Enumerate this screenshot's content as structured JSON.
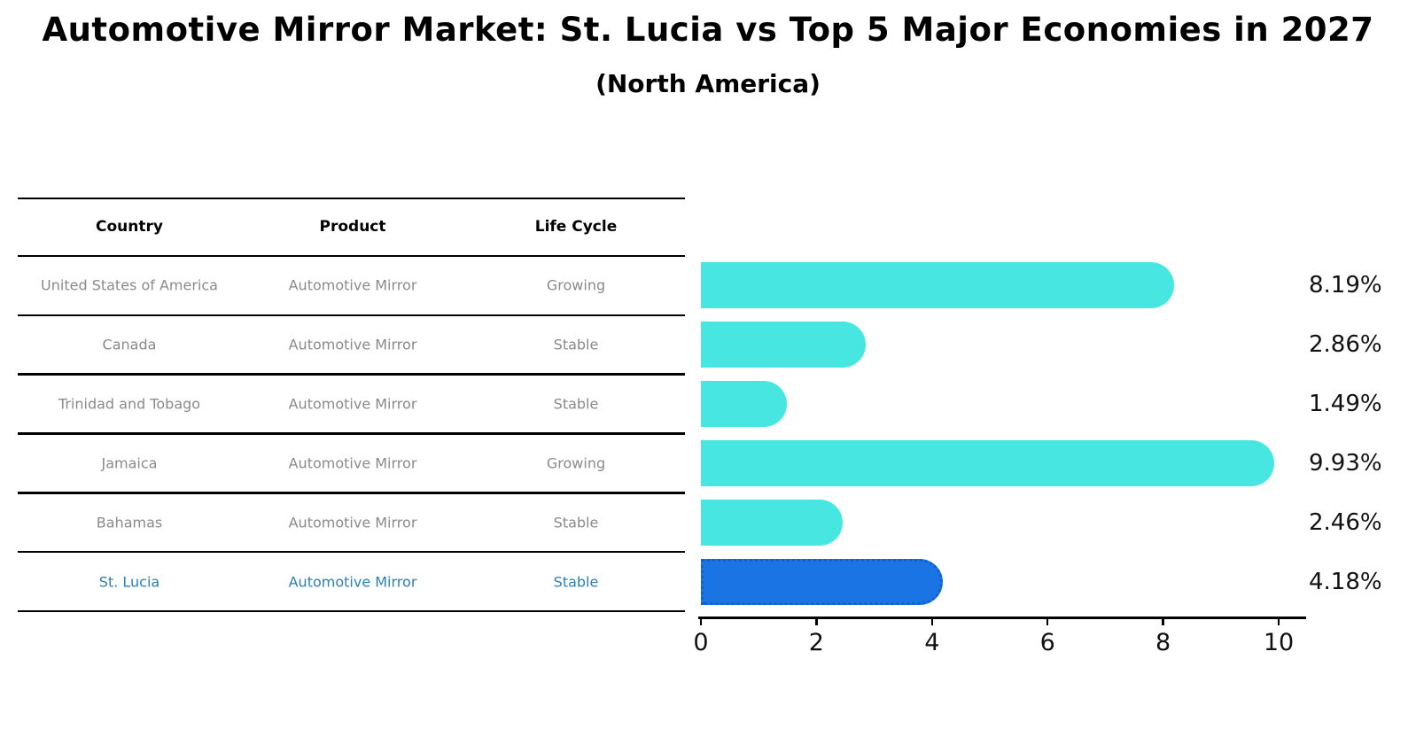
{
  "title": "Automotive Mirror Market: St. Lucia vs Top 5 Major Economies in 2027",
  "subtitle": "(North America)",
  "table": {
    "headers": [
      "Country",
      "Product",
      "Life Cycle"
    ],
    "rows": [
      {
        "country": "United States of America",
        "product": "Automotive Mirror",
        "life_cycle": "Growing",
        "highlighted": false
      },
      {
        "country": "Canada",
        "product": "Automotive Mirror",
        "life_cycle": "Stable",
        "highlighted": false
      },
      {
        "country": "Trinidad and Tobago",
        "product": "Automotive Mirror",
        "life_cycle": "Stable",
        "highlighted": false
      },
      {
        "country": "Jamaica",
        "product": "Automotive Mirror",
        "life_cycle": "Growing",
        "highlighted": false
      },
      {
        "country": "Bahamas",
        "product": "Automotive Mirror",
        "life_cycle": "Stable",
        "highlighted": false
      },
      {
        "country": "St. Lucia",
        "product": "Automotive Mirror",
        "life_cycle": "Stable",
        "highlighted": true
      }
    ]
  },
  "chart_data": {
    "type": "bar",
    "orientation": "horizontal",
    "title": "Automotive Mirror Market: St. Lucia vs Top 5 Major Economies in 2027",
    "subtitle": "(North America)",
    "categories": [
      "United States of America",
      "Canada",
      "Trinidad and Tobago",
      "Jamaica",
      "Bahamas",
      "St. Lucia"
    ],
    "values": [
      8.19,
      2.86,
      1.49,
      9.93,
      2.46,
      4.18
    ],
    "value_labels": [
      "8.19%",
      "2.86%",
      "1.49%",
      "9.93%",
      "2.46%",
      "4.18%"
    ],
    "xlabel": "",
    "ylabel": "",
    "xlim": [
      0,
      10.45
    ],
    "xticks": [
      0,
      2,
      4,
      6,
      8,
      10
    ],
    "grid": false,
    "legend": false,
    "highlight_index": 5
  },
  "colors": {
    "bar": "#47E6E0",
    "highlight_bar": "#1B74E4",
    "highlight_bar_border": "#1460C8",
    "row_text": "#8A8A8A",
    "highlight_row_text": "#2980B9",
    "header_text": "#000000",
    "axis": "#000000",
    "value_label": "#111111"
  }
}
